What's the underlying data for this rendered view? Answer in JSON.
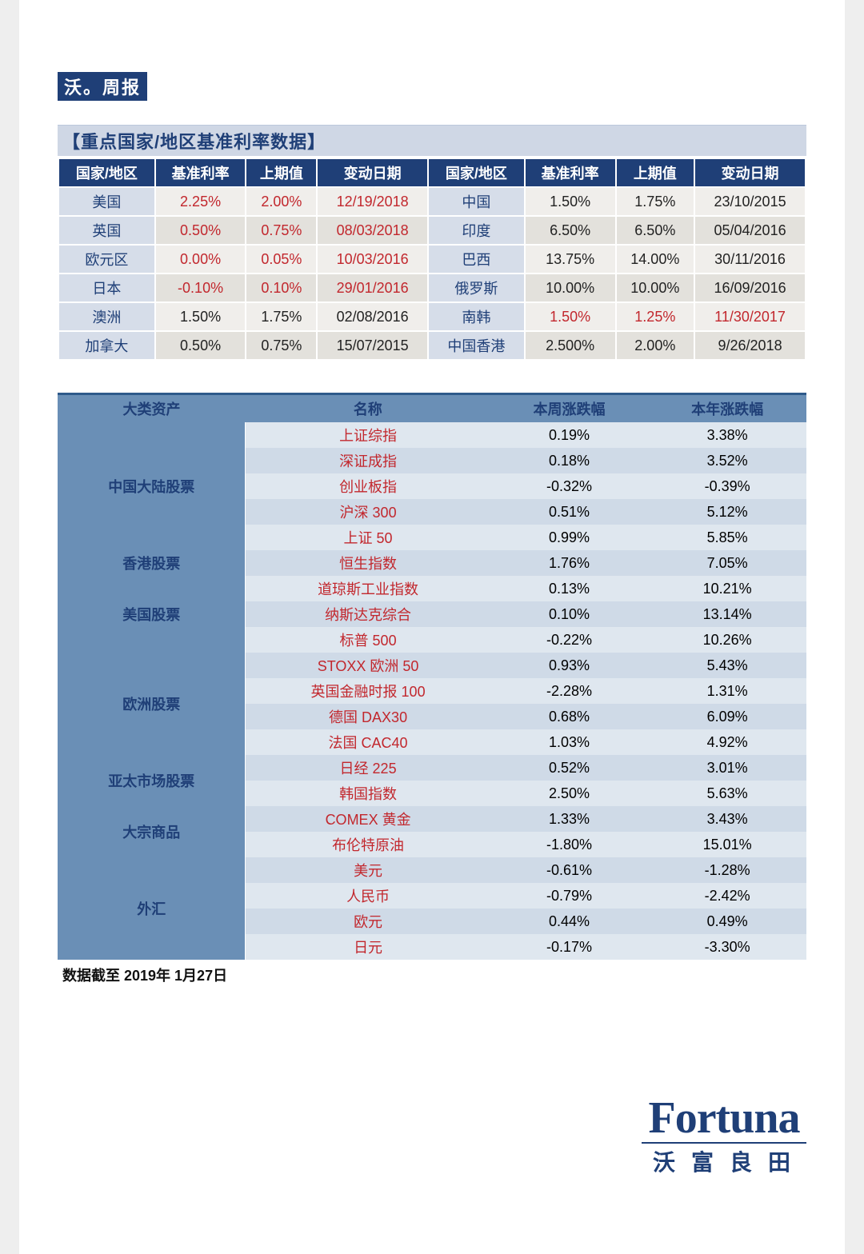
{
  "badge": "沃。周报",
  "rates": {
    "section_title": "【重点国家/地区基准利率数据】",
    "headers": [
      "国家/地区",
      "基准利率",
      "上期值",
      "变动日期",
      "国家/地区",
      "基准利率",
      "上期值",
      "变动日期"
    ],
    "rows": [
      {
        "c1": "美国",
        "r1": "2.25%",
        "p1": "2.00%",
        "d1": "12/19/2018",
        "c2": "中国",
        "r2": "1.50%",
        "p2": "1.75%",
        "d2": "23/10/2015",
        "left_red": true
      },
      {
        "c1": "英国",
        "r1": "0.50%",
        "p1": "0.75%",
        "d1": "08/03/2018",
        "c2": "印度",
        "r2": "6.50%",
        "p2": "6.50%",
        "d2": "05/04/2016",
        "left_red": true
      },
      {
        "c1": "欧元区",
        "r1": "0.00%",
        "p1": "0.05%",
        "d1": "10/03/2016",
        "c2": "巴西",
        "r2": "13.75%",
        "p2": "14.00%",
        "d2": "30/11/2016",
        "left_red": true
      },
      {
        "c1": "日本",
        "r1": "-0.10%",
        "p1": "0.10%",
        "d1": "29/01/2016",
        "c2": "俄罗斯",
        "r2": "10.00%",
        "p2": "10.00%",
        "d2": "16/09/2016",
        "left_red": true
      },
      {
        "c1": "澳洲",
        "r1": "1.50%",
        "p1": "1.75%",
        "d1": "02/08/2016",
        "c2": "南韩",
        "r2": "1.50%",
        "p2": "1.25%",
        "d2": "11/30/2017",
        "left_red": false,
        "right_red": true
      },
      {
        "c1": "加拿大",
        "r1": "0.50%",
        "p1": "0.75%",
        "d1": "15/07/2015",
        "c2": "中国香港",
        "r2": "2.500%",
        "p2": "2.00%",
        "d2": "9/26/2018",
        "left_red": false
      }
    ]
  },
  "assets": {
    "headers": [
      "大类资产",
      "名称",
      "本周涨跌幅",
      "本年涨跌幅"
    ],
    "groups": [
      {
        "label": "中国大陆股票",
        "rows": [
          {
            "name": "上证综指",
            "week": "0.19%",
            "year": "3.38%"
          },
          {
            "name": "深证成指",
            "week": "0.18%",
            "year": "3.52%"
          },
          {
            "name": "创业板指",
            "week": "-0.32%",
            "year": "-0.39%"
          },
          {
            "name": "沪深 300",
            "week": "0.51%",
            "year": "5.12%"
          },
          {
            "name": "上证 50",
            "week": "0.99%",
            "year": "5.85%"
          }
        ]
      },
      {
        "label": "香港股票",
        "rows": [
          {
            "name": "恒生指数",
            "week": "1.76%",
            "year": "7.05%"
          }
        ]
      },
      {
        "label": "美国股票",
        "rows": [
          {
            "name": "道琼斯工业指数",
            "week": "0.13%",
            "year": "10.21%"
          },
          {
            "name": "纳斯达克综合",
            "week": "0.10%",
            "year": "13.14%"
          },
          {
            "name": "标普 500",
            "week": "-0.22%",
            "year": "10.26%"
          }
        ]
      },
      {
        "label": "欧洲股票",
        "rows": [
          {
            "name": "STOXX 欧洲 50",
            "week": "0.93%",
            "year": "5.43%"
          },
          {
            "name": "英国金融时报 100",
            "week": "-2.28%",
            "year": "1.31%"
          },
          {
            "name": "德国 DAX30",
            "week": "0.68%",
            "year": "6.09%"
          },
          {
            "name": "法国 CAC40",
            "week": "1.03%",
            "year": "4.92%"
          }
        ]
      },
      {
        "label": "亚太市场股票",
        "rows": [
          {
            "name": "日经 225",
            "week": "0.52%",
            "year": "3.01%"
          },
          {
            "name": "韩国指数",
            "week": "2.50%",
            "year": "5.63%"
          }
        ]
      },
      {
        "label": "大宗商品",
        "rows": [
          {
            "name": "COMEX 黄金",
            "week": "1.33%",
            "year": "3.43%"
          },
          {
            "name": "布伦特原油",
            "week": "-1.80%",
            "year": "15.01%"
          }
        ]
      },
      {
        "label": "外汇",
        "rows": [
          {
            "name": "美元",
            "week": "-0.61%",
            "year": "-1.28%"
          },
          {
            "name": "人民币",
            "week": "-0.79%",
            "year": "-2.42%"
          },
          {
            "name": "欧元",
            "week": "0.44%",
            "year": "0.49%"
          },
          {
            "name": "日元",
            "week": "-0.17%",
            "year": "-3.30%"
          }
        ]
      }
    ]
  },
  "footnote": "数据截至 2019年 1月27日",
  "logo": {
    "top": "Fortuna",
    "bottom": "沃富良田"
  }
}
